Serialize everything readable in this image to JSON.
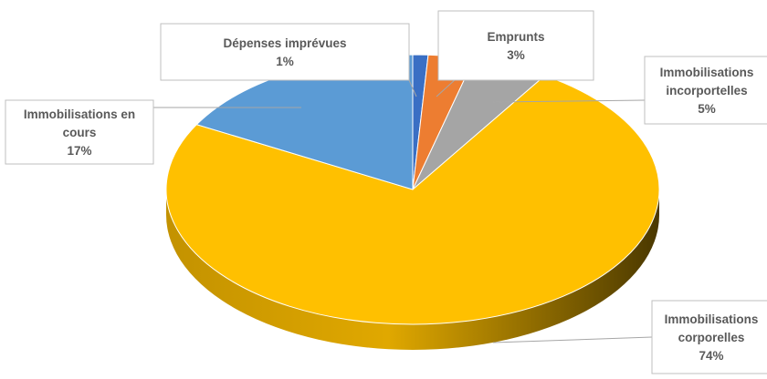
{
  "chart_data": {
    "type": "pie",
    "title": "",
    "slices": [
      {
        "label_lines": [
          "Dépenses imprévues"
        ],
        "value": 1,
        "value_label": "1%",
        "color": "#3a6fc4"
      },
      {
        "label_lines": [
          "Emprunts"
        ],
        "value": 3,
        "value_label": "3%",
        "color": "#ed7d31"
      },
      {
        "label_lines": [
          "Immobilisations",
          "incorportelles"
        ],
        "value": 5,
        "value_label": "5%",
        "color": "#a5a5a5"
      },
      {
        "label_lines": [
          "Immobilisations",
          "corporelles"
        ],
        "value": 74,
        "value_label": "74%",
        "color": "#ffc000"
      },
      {
        "label_lines": [
          "Immobilisations en",
          "cours"
        ],
        "value": 17,
        "value_label": "17%",
        "color": "#5b9bd5"
      }
    ],
    "style": "3d",
    "legend": "none",
    "data_labels": "callout"
  }
}
